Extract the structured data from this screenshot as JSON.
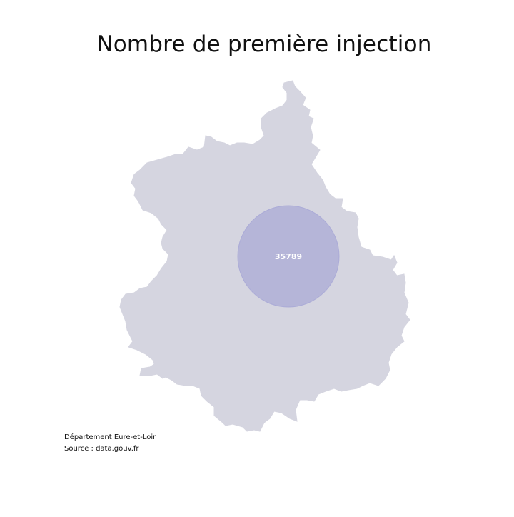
{
  "title": "Nombre de première injection",
  "map": {
    "region_fill": "#d5d5e0",
    "bubble_fill": "#a9a9d6",
    "bubble_label_color": "#ffffff"
  },
  "bubble": {
    "value": "35789"
  },
  "caption": {
    "line1": "Département Eure-et-Loir",
    "line2": "Source : data.gouv.fr"
  }
}
